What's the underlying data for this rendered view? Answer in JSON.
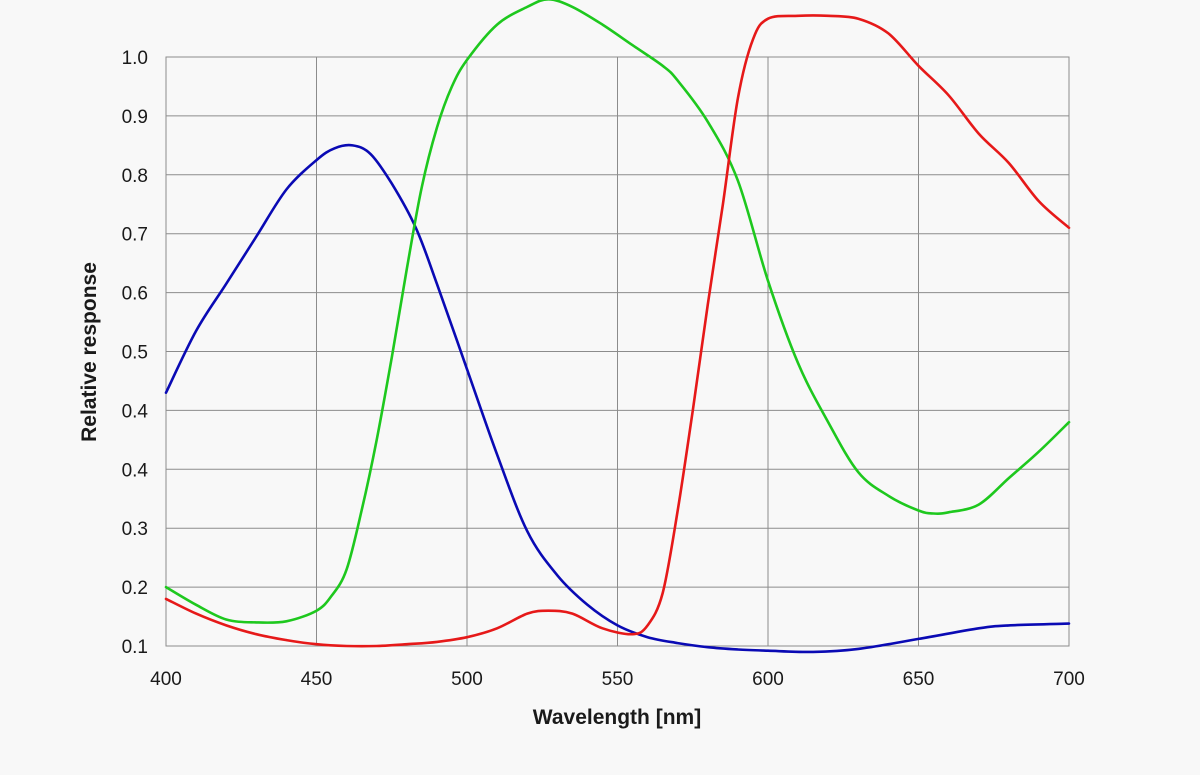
{
  "chart_data": {
    "type": "line",
    "title": "",
    "xlabel": "Wavelength [nm]",
    "ylabel": "Relative response",
    "xlim": [
      400,
      700
    ],
    "x_ticks": [
      400,
      450,
      500,
      550,
      600,
      650,
      700
    ],
    "y_tick_labels": [
      "0.1",
      "0.2",
      "0.3",
      "0.4",
      "0.4",
      "0.5",
      "0.6",
      "0.7",
      "0.8",
      "0.9",
      "1.0"
    ],
    "y_range_note": "gridlines evenly spaced; values below are in gridline units where 0 = bottom (0.1) and 10 = top (1.0)",
    "grid": true,
    "series": [
      {
        "name": "blue",
        "color": "#0a0ab4",
        "x": [
          400,
          410,
          420,
          430,
          440,
          450,
          456,
          462,
          468,
          475,
          483,
          490,
          500,
          510,
          520,
          530,
          540,
          550,
          560,
          570,
          580,
          590,
          600,
          615,
          630,
          650,
          670,
          680,
          700
        ],
        "y": [
          4.3,
          5.35,
          6.15,
          6.95,
          7.75,
          8.25,
          8.45,
          8.5,
          8.35,
          7.85,
          7.1,
          6.15,
          4.7,
          3.25,
          1.95,
          1.2,
          0.7,
          0.35,
          0.15,
          0.05,
          -0.02,
          -0.06,
          -0.08,
          -0.1,
          -0.05,
          0.12,
          0.3,
          0.35,
          0.38
        ]
      },
      {
        "name": "green",
        "color": "#1ec81e",
        "x": [
          400,
          410,
          420,
          430,
          440,
          450,
          455,
          460,
          465,
          470,
          475,
          480,
          485,
          490,
          495,
          500,
          510,
          520,
          527,
          535,
          545,
          555,
          565,
          570,
          580,
          590,
          600,
          610,
          620,
          630,
          640,
          650,
          655,
          660,
          670,
          680,
          690,
          700
        ],
        "y": [
          1.0,
          0.7,
          0.45,
          0.4,
          0.42,
          0.6,
          0.85,
          1.3,
          2.3,
          3.5,
          4.9,
          6.4,
          7.8,
          8.8,
          9.5,
          9.95,
          10.55,
          10.85,
          10.98,
          10.85,
          10.55,
          10.2,
          9.85,
          9.6,
          8.9,
          7.9,
          6.2,
          4.8,
          3.8,
          2.95,
          2.55,
          2.3,
          2.25,
          2.27,
          2.4,
          2.85,
          3.3,
          3.8
        ]
      },
      {
        "name": "red",
        "color": "#e61919",
        "x": [
          400,
          410,
          420,
          430,
          440,
          450,
          460,
          470,
          480,
          490,
          500,
          510,
          520,
          527,
          535,
          545,
          555,
          560,
          565,
          570,
          575,
          580,
          585,
          590,
          595,
          600,
          610,
          620,
          630,
          640,
          650,
          660,
          670,
          680,
          690,
          700
        ],
        "y": [
          0.8,
          0.55,
          0.35,
          0.2,
          0.1,
          0.03,
          0.0,
          0.0,
          0.03,
          0.07,
          0.15,
          0.3,
          0.55,
          0.6,
          0.55,
          0.3,
          0.2,
          0.35,
          0.9,
          2.3,
          4.0,
          5.8,
          7.5,
          9.3,
          10.3,
          10.65,
          10.7,
          10.7,
          10.65,
          10.4,
          9.85,
          9.35,
          8.7,
          8.2,
          7.55,
          7.1
        ]
      }
    ]
  }
}
